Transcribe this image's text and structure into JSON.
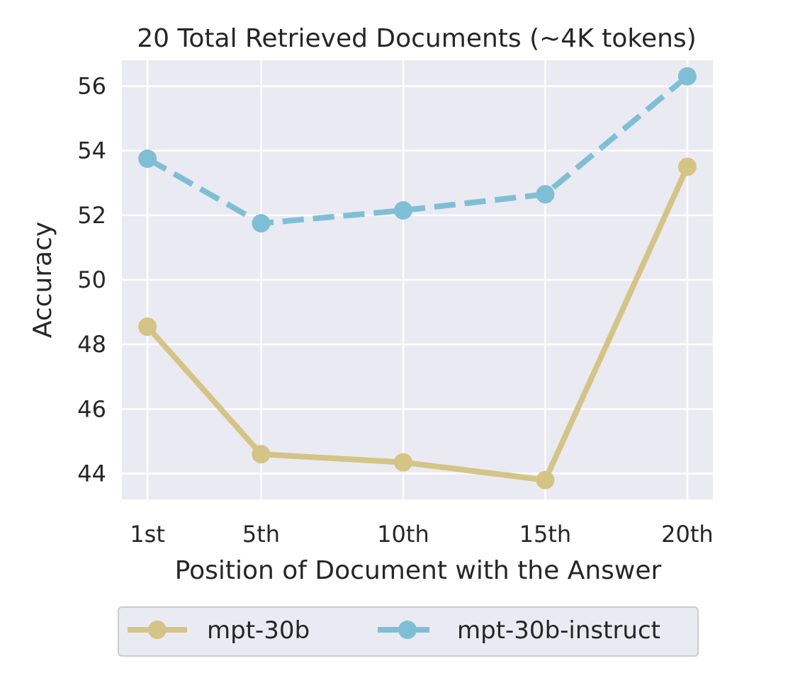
{
  "chart_data": {
    "type": "line",
    "title": "20 Total Retrieved Documents (~4K tokens)",
    "xlabel": "Position of Document with the Answer",
    "ylabel": "Accuracy",
    "categories": [
      "1st",
      "5th",
      "10th",
      "15th",
      "20th"
    ],
    "x": [
      1,
      5,
      10,
      15,
      20
    ],
    "xlim": [
      0.1,
      20.9
    ],
    "ylim": [
      43.2,
      56.8
    ],
    "yticks": [
      44,
      46,
      48,
      50,
      52,
      54,
      56
    ],
    "grid": true,
    "legend_position": "bottom",
    "series": [
      {
        "name": "mpt-30b",
        "values": [
          48.55,
          44.6,
          44.35,
          43.8,
          53.5
        ],
        "color": "#d4c486",
        "line_style": "solid",
        "marker": "circle"
      },
      {
        "name": "mpt-30b-instruct",
        "values": [
          53.75,
          51.75,
          52.15,
          52.65,
          56.3
        ],
        "color": "#7fbfd6",
        "line_style": "dashed",
        "marker": "circle"
      }
    ]
  },
  "colors": {
    "plot_background": "#eaeaf2",
    "grid": "#ffffff",
    "text": "#262626"
  }
}
